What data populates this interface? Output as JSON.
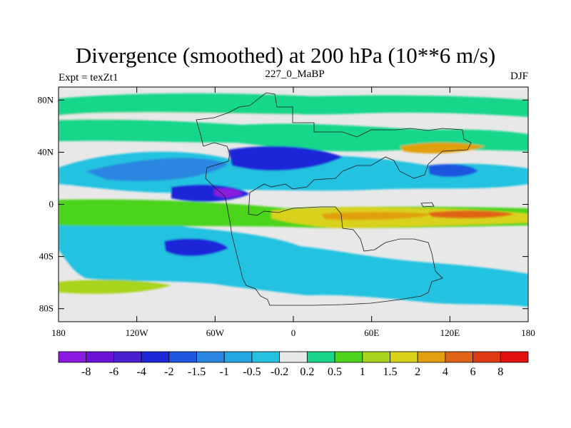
{
  "chart_data": {
    "type": "filled-contour-map",
    "title": "Divergence (smoothed) at 200 hPa (10**6 m/s)",
    "left_label": "Expt = texZt1",
    "center_label": "227_0_MaBP",
    "right_label": "DJF",
    "x_ticks": [
      "180",
      "120W",
      "60W",
      "0",
      "60E",
      "120E",
      "180"
    ],
    "y_ticks": [
      "80N",
      "40N",
      "0",
      "40S",
      "80S"
    ],
    "xlim": [
      -180,
      180
    ],
    "ylim": [
      -90,
      90
    ],
    "colorbar": {
      "labels": [
        "-8",
        "-6",
        "-4",
        "-2",
        "-1.5",
        "-1",
        "-0.5",
        "-0.2",
        "0.2",
        "0.5",
        "1",
        "1.5",
        "2",
        "4",
        "6",
        "8"
      ],
      "colors": [
        "#8a1ae0",
        "#6b14d8",
        "#4a1fd0",
        "#1e28d8",
        "#1e56e0",
        "#2a86e0",
        "#24a6e0",
        "#24c2e0",
        "#e8e8e8",
        "#19d68a",
        "#4cd41e",
        "#a8d41e",
        "#d8d21a",
        "#e0a00f",
        "#e06418",
        "#e03a14",
        "#e01010"
      ]
    }
  }
}
